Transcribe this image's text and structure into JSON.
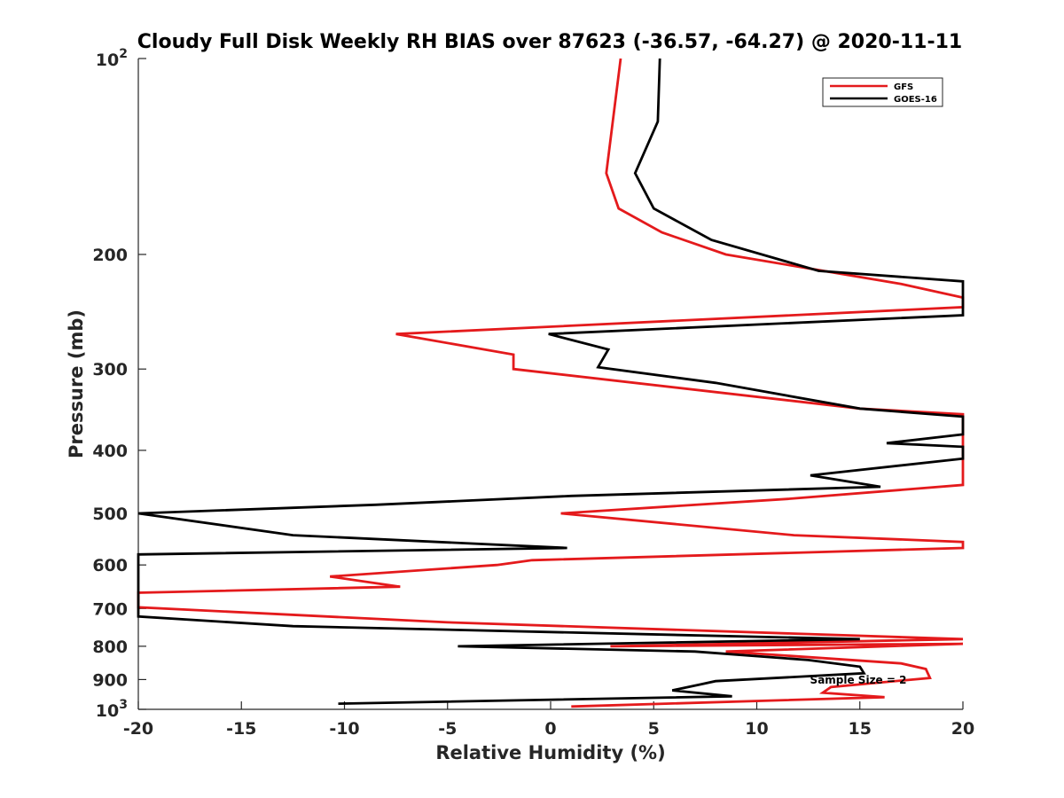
{
  "chart_data": {
    "type": "line",
    "title": "Cloudy Full Disk Weekly RH BIAS over 87623 (-36.57, -64.27) @ 2020-11-11",
    "xlabel": "Relative Humidity (%)",
    "ylabel": "Pressure (mb)",
    "xlim": [
      -20,
      20
    ],
    "ylim": [
      100,
      1000
    ],
    "y_scale": "log",
    "y_direction": "reversed",
    "x_ticks": [
      "-20",
      "-15",
      "-10",
      "-5",
      "0",
      "5",
      "10",
      "15",
      "20"
    ],
    "y_ticks": [
      {
        "value": 100,
        "base": "10",
        "exp": "2"
      },
      {
        "value": 200,
        "label": "200"
      },
      {
        "value": 300,
        "label": "300"
      },
      {
        "value": 400,
        "label": "400"
      },
      {
        "value": 500,
        "label": "500"
      },
      {
        "value": 600,
        "label": "600"
      },
      {
        "value": 700,
        "label": "700"
      },
      {
        "value": 800,
        "label": "800"
      },
      {
        "value": 900,
        "label": "900"
      },
      {
        "value": 1000,
        "base": "10",
        "exp": "3"
      }
    ],
    "legend_position": "top-right",
    "grid": false,
    "annotation": "Sample Size = 2",
    "series": [
      {
        "name": "GFS",
        "color": "#e41a1c",
        "points": [
          [
            3.4,
            100
          ],
          [
            2.7,
            150
          ],
          [
            3.3,
            170
          ],
          [
            5.4,
            185
          ],
          [
            8.5,
            200
          ],
          [
            17.0,
            222
          ],
          [
            20.0,
            233
          ],
          [
            20.0,
            241
          ],
          [
            -7.5,
            265
          ],
          [
            -1.8,
            285
          ],
          [
            -1.8,
            300
          ],
          [
            15.0,
            345
          ],
          [
            20.0,
            352
          ],
          [
            20.0,
            452
          ],
          [
            11.5,
            475
          ],
          [
            0.5,
            500
          ],
          [
            11.8,
            540
          ],
          [
            20.0,
            553
          ],
          [
            20.0,
            565
          ],
          [
            -0.9,
            590
          ],
          [
            -2.6,
            600
          ],
          [
            -10.7,
            625
          ],
          [
            -7.3,
            648
          ],
          [
            -20.0,
            662
          ],
          [
            -20.0,
            697
          ],
          [
            -5.0,
            735
          ],
          [
            20.0,
            780
          ],
          [
            2.9,
            800
          ],
          [
            20.0,
            793
          ],
          [
            8.5,
            815
          ],
          [
            17.0,
            850
          ],
          [
            18.2,
            867
          ],
          [
            18.4,
            895
          ],
          [
            13.6,
            924
          ],
          [
            13.2,
            943
          ],
          [
            16.2,
            958
          ],
          [
            1.0,
            990
          ]
        ]
      },
      {
        "name": "GOES-16",
        "color": "#000000",
        "points": [
          [
            5.3,
            100
          ],
          [
            5.2,
            125
          ],
          [
            4.1,
            150
          ],
          [
            5.0,
            170
          ],
          [
            7.8,
            190
          ],
          [
            13.0,
            212
          ],
          [
            20.0,
            220
          ],
          [
            20.0,
            248
          ],
          [
            -0.1,
            265
          ],
          [
            2.8,
            280
          ],
          [
            2.3,
            298
          ],
          [
            8.0,
            315
          ],
          [
            15.0,
            345
          ],
          [
            20.0,
            355
          ],
          [
            20.0,
            378
          ],
          [
            16.3,
            390
          ],
          [
            20.0,
            395
          ],
          [
            20.0,
            412
          ],
          [
            12.6,
            437
          ],
          [
            16.0,
            455
          ],
          [
            1.0,
            470
          ],
          [
            -8.5,
            485
          ],
          [
            -20.0,
            500
          ],
          [
            -12.5,
            540
          ],
          [
            0.8,
            565
          ],
          [
            -20.0,
            578
          ],
          [
            -20.0,
            720
          ],
          [
            -12.5,
            745
          ],
          [
            15.0,
            780
          ],
          [
            -4.5,
            800
          ],
          [
            7.0,
            815
          ],
          [
            12.5,
            840
          ],
          [
            15.0,
            860
          ],
          [
            15.2,
            880
          ],
          [
            8.0,
            905
          ],
          [
            7.3,
            915
          ],
          [
            5.9,
            935
          ],
          [
            8.8,
            955
          ],
          [
            -10.3,
            980
          ]
        ]
      }
    ]
  }
}
